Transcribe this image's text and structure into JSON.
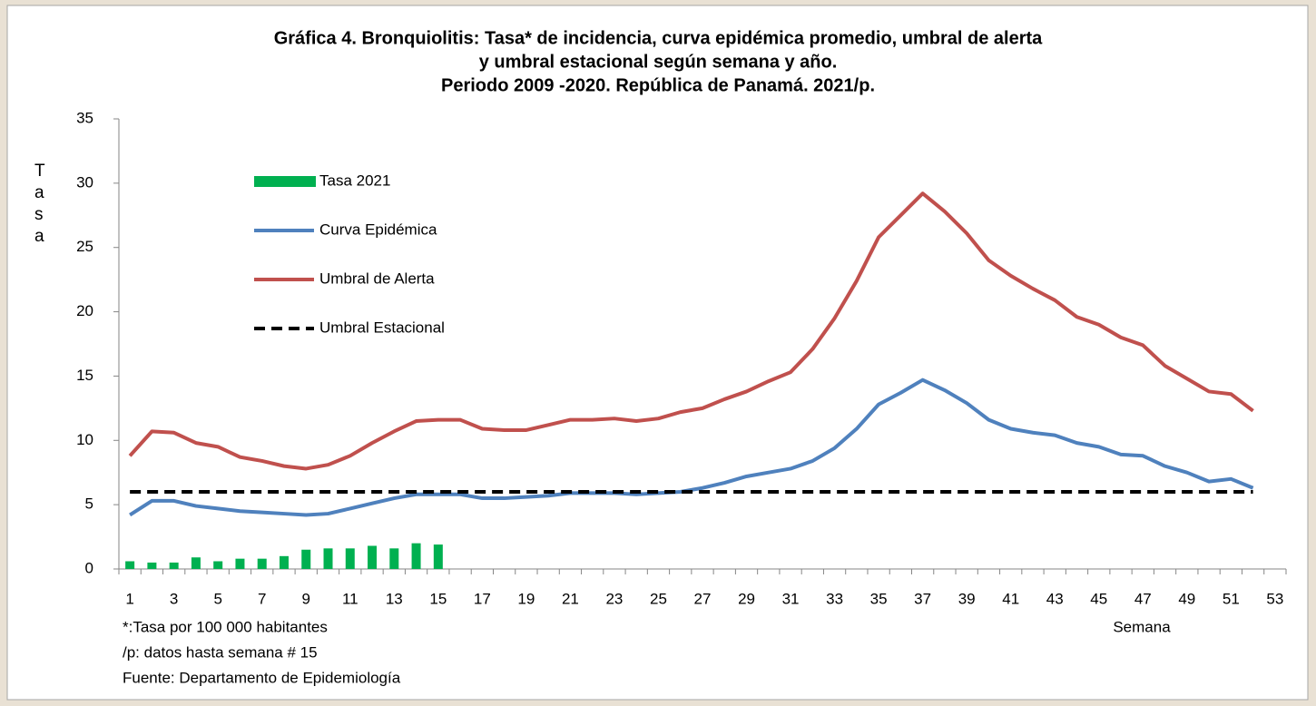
{
  "chart_data": {
    "type": "combo",
    "title": [
      "Gráfica 4. Bronquiolitis: Tasa* de incidencia, curva epidémica promedio, umbral de alerta",
      "y umbral estacional según semana y año.",
      "Periodo 2009 -2020. República de Panamá. 2021/p."
    ],
    "xlabel": "Semana",
    "ylabel": "Tasa",
    "notes": [
      "*:Tasa por 100 000 habitantes",
      "/p: datos hasta semana  # 15",
      "Fuente: Departamento de Epidemiología"
    ],
    "categories": [
      1,
      null,
      3,
      null,
      5,
      null,
      7,
      null,
      9,
      null,
      11,
      null,
      13,
      null,
      15,
      null,
      17,
      null,
      19,
      null,
      21,
      null,
      23,
      null,
      25,
      null,
      27,
      null,
      29,
      null,
      31,
      null,
      33,
      null,
      35,
      null,
      37,
      null,
      39,
      null,
      41,
      null,
      43,
      null,
      45,
      null,
      47,
      null,
      49,
      null,
      51,
      null,
      53
    ],
    "ylim": [
      0,
      35
    ],
    "yticks": [
      0,
      5,
      10,
      15,
      20,
      25,
      30,
      35
    ],
    "series": [
      {
        "name": "Tasa 2021",
        "type": "bar",
        "color": "#00b050",
        "values": [
          0.6,
          0.5,
          0.5,
          0.9,
          0.6,
          0.8,
          0.8,
          1.0,
          1.5,
          1.6,
          1.6,
          1.8,
          1.6,
          2.0,
          1.9,
          null,
          null,
          null,
          null,
          null,
          null,
          null,
          null,
          null,
          null,
          null,
          null,
          null,
          null,
          null,
          null,
          null,
          null,
          null,
          null,
          null,
          null,
          null,
          null,
          null,
          null,
          null,
          null,
          null,
          null,
          null,
          null,
          null,
          null,
          null,
          null,
          null,
          null
        ]
      },
      {
        "name": "Curva Epidémica",
        "type": "line",
        "color": "#4f81bd",
        "values": [
          4.2,
          5.3,
          5.3,
          4.9,
          4.7,
          4.5,
          4.4,
          4.3,
          4.2,
          4.3,
          4.7,
          5.1,
          5.5,
          5.8,
          5.8,
          5.8,
          5.5,
          5.5,
          5.6,
          5.7,
          5.9,
          5.9,
          5.9,
          5.8,
          5.9,
          6.0,
          6.3,
          6.7,
          7.2,
          7.5,
          7.8,
          8.4,
          9.4,
          10.9,
          12.8,
          13.7,
          14.7,
          13.9,
          12.9,
          11.6,
          10.9,
          10.6,
          10.4,
          9.8,
          9.5,
          8.9,
          8.8,
          8.0,
          7.5,
          6.8,
          7.0,
          6.3,
          null
        ]
      },
      {
        "name": "Umbral de Alerta",
        "type": "line",
        "color": "#c0504d",
        "values": [
          8.8,
          10.7,
          10.6,
          9.8,
          9.5,
          8.7,
          8.4,
          8.0,
          7.8,
          8.1,
          8.8,
          9.8,
          10.7,
          11.5,
          11.6,
          11.6,
          10.9,
          10.8,
          10.8,
          11.2,
          11.6,
          11.6,
          11.7,
          11.5,
          11.7,
          12.2,
          12.5,
          13.2,
          13.8,
          14.6,
          15.3,
          17.1,
          19.5,
          22.4,
          25.8,
          27.5,
          29.2,
          27.8,
          26.1,
          24.0,
          22.8,
          21.8,
          20.9,
          19.6,
          19.0,
          18.0,
          17.4,
          15.8,
          14.8,
          13.8,
          13.6,
          12.3,
          null
        ]
      },
      {
        "name": "Umbral Estacional",
        "type": "line",
        "dash": true,
        "color": "#000000",
        "values": [
          6,
          6,
          6,
          6,
          6,
          6,
          6,
          6,
          6,
          6,
          6,
          6,
          6,
          6,
          6,
          6,
          6,
          6,
          6,
          6,
          6,
          6,
          6,
          6,
          6,
          6,
          6,
          6,
          6,
          6,
          6,
          6,
          6,
          6,
          6,
          6,
          6,
          6,
          6,
          6,
          6,
          6,
          6,
          6,
          6,
          6,
          6,
          6,
          6,
          6,
          6,
          6,
          null
        ]
      }
    ]
  }
}
